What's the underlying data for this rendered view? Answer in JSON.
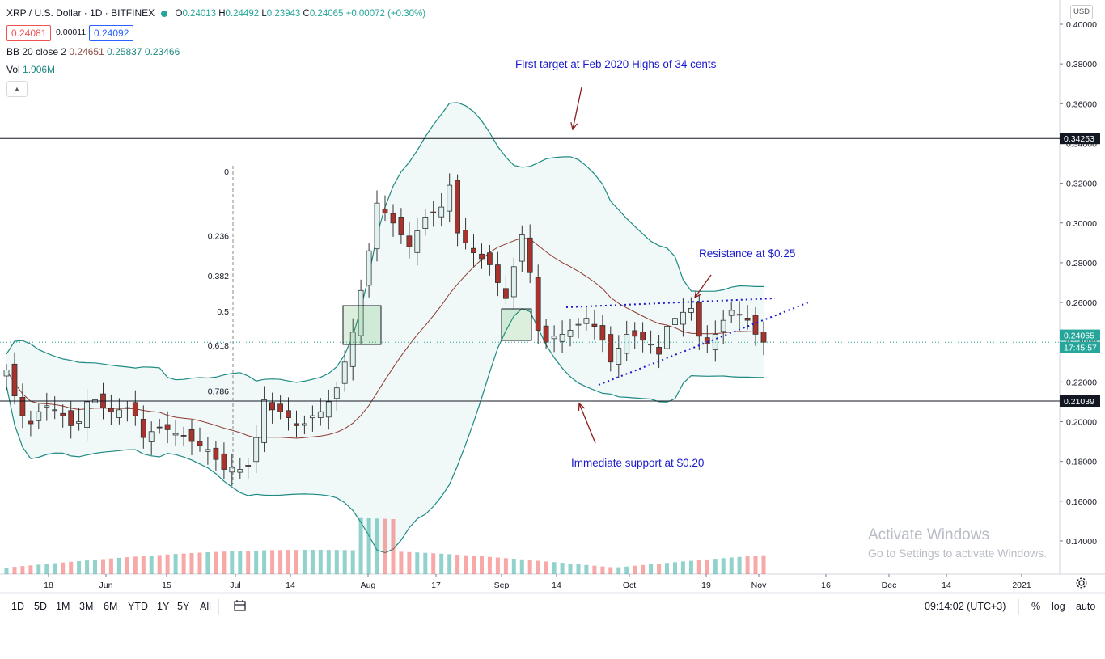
{
  "header": {
    "symbol": "XRP / U.S. Dollar · 1D · BITFINEX",
    "ohlc": [
      {
        "k": "O",
        "v": "0.24013"
      },
      {
        "k": "H",
        "v": "0.24492"
      },
      {
        "k": "L",
        "v": "0.23943"
      },
      {
        "k": "C",
        "v": "0.24065"
      }
    ],
    "change": "+0.00072 (+0.30%)",
    "bid": "0.24081",
    "spread": "0.00011",
    "ask": "0.24092"
  },
  "indicators": {
    "bb_label": "BB 20 close 2",
    "bb_basis": "0.24651",
    "bb_upper": "0.25837",
    "bb_lower": "0.23466",
    "vol_label": "Vol",
    "vol_value": "1.906M"
  },
  "currency_button": "USD",
  "timeframes": [
    "1D",
    "5D",
    "1M",
    "3M",
    "6M",
    "YTD",
    "1Y",
    "5Y",
    "All"
  ],
  "clock": "09:14:02 (UTC+3)",
  "scale_options": {
    "percent": "%",
    "log": "log",
    "auto": "auto"
  },
  "watermark": {
    "title": "Activate Windows",
    "subtitle": "Go to Settings to activate Windows."
  },
  "colors": {
    "up": "#26a69a",
    "down": "#ef5350",
    "band": "#1e8a83",
    "basis": "#8d3b33",
    "annotation": "#1a1acc",
    "arrow": "#8b1a1a"
  },
  "chart_data": {
    "type": "candlestick",
    "ylim": [
      0.12,
      0.4
    ],
    "price_ticks": [
      "0.40000",
      "0.38000",
      "0.36000",
      "0.34000",
      "0.32000",
      "0.30000",
      "0.28000",
      "0.26000",
      "0.24000",
      "0.22000",
      "0.20000",
      "0.18000",
      "0.16000",
      "0.14000"
    ],
    "x_ticks": [
      "18",
      "Jun",
      "15",
      "Jul",
      "14",
      "Aug",
      "17",
      "Sep",
      "14",
      "Oct",
      "19",
      "Nov",
      "16",
      "Dec",
      "14",
      "2021"
    ],
    "price_labels": [
      {
        "value": 0.34253,
        "text": "0.34253",
        "kind": "line"
      },
      {
        "value": 0.24065,
        "text": "0.24065",
        "kind": "last"
      },
      {
        "value": 0.24065,
        "text": "17:45:57",
        "kind": "countdown"
      },
      {
        "value": 0.21039,
        "text": "0.21039",
        "kind": "line"
      }
    ],
    "horizontal_lines": [
      0.34253,
      0.21039
    ],
    "fib_levels": [
      {
        "label": "0",
        "value": 0.326
      },
      {
        "label": "0.236",
        "value": 0.2935
      },
      {
        "label": "0.382",
        "value": 0.2735
      },
      {
        "label": "0.5",
        "value": 0.2555
      },
      {
        "label": "0.618",
        "value": 0.2385
      },
      {
        "label": "0.786",
        "value": 0.2155
      }
    ],
    "annotations": [
      "First target at Feb 2020 Highs of 34 cents",
      "Resistance at $0.25",
      "Immediate support at $0.20"
    ],
    "sample_closes": [
      0.226,
      0.213,
      0.203,
      0.199,
      0.205,
      0.208,
      0.206,
      0.203,
      0.198,
      0.2,
      0.21,
      0.211,
      0.207,
      0.205,
      0.206,
      0.207,
      0.203,
      0.192,
      0.195,
      0.197,
      0.196,
      0.194,
      0.193,
      0.19,
      0.188,
      0.186,
      0.181,
      0.176,
      0.177,
      0.176,
      0.178,
      0.192,
      0.211,
      0.206,
      0.205,
      0.202,
      0.198,
      0.199,
      0.203,
      0.205,
      0.21,
      0.217,
      0.23,
      0.245,
      0.266,
      0.286,
      0.31,
      0.305,
      0.3,
      0.294,
      0.288,
      0.296,
      0.303,
      0.305,
      0.308,
      0.319,
      0.295,
      0.29,
      0.285,
      0.282,
      0.279,
      0.27,
      0.262,
      0.278,
      0.294,
      0.275,
      0.246,
      0.24,
      0.243,
      0.244,
      0.246,
      0.249,
      0.252,
      0.248,
      0.241,
      0.23,
      0.237,
      0.244,
      0.243,
      0.241,
      0.239,
      0.234,
      0.248,
      0.252,
      0.255,
      0.257,
      0.243,
      0.239,
      0.244,
      0.251,
      0.256,
      0.254,
      0.251,
      0.244,
      0.24
    ]
  }
}
